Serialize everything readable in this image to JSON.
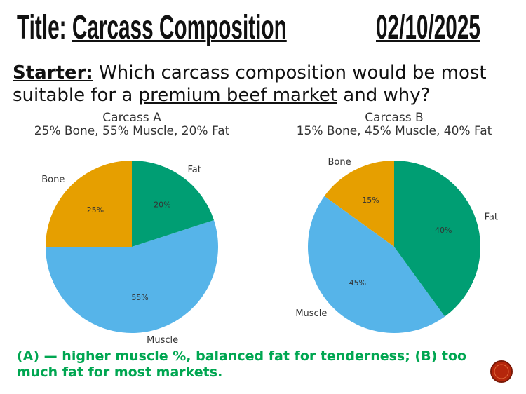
{
  "slide": {
    "title_label": "Title:",
    "title": "Carcass Composition",
    "date": "02/10/2025",
    "starter_label": "Starter:",
    "starter_text_1": "Which carcass composition would be most suitable for a",
    "starter_underlined": "premium beef market",
    "starter_text_2": "and why?",
    "answer": "(A) — higher muscle %, balanced fat for tenderness; (B) too much fat for most markets."
  },
  "chart_data": [
    {
      "type": "pie",
      "title": "Carcass A",
      "subtitle": "25% Bone, 55% Muscle, 20% Fat",
      "categories": [
        "Bone",
        "Muscle",
        "Fat"
      ],
      "values": [
        25,
        55,
        20
      ],
      "value_labels": [
        "25%",
        "55%",
        "20%"
      ],
      "colors": [
        "#e69f00",
        "#56b4e9",
        "#009e73"
      ]
    },
    {
      "type": "pie",
      "title": "Carcass B",
      "subtitle": "15% Bone, 45% Muscle, 40% Fat",
      "categories": [
        "Bone",
        "Muscle",
        "Fat"
      ],
      "values": [
        15,
        45,
        40
      ],
      "value_labels": [
        "15%",
        "45%",
        "40%"
      ],
      "colors": [
        "#e69f00",
        "#56b4e9",
        "#009e73"
      ]
    }
  ]
}
